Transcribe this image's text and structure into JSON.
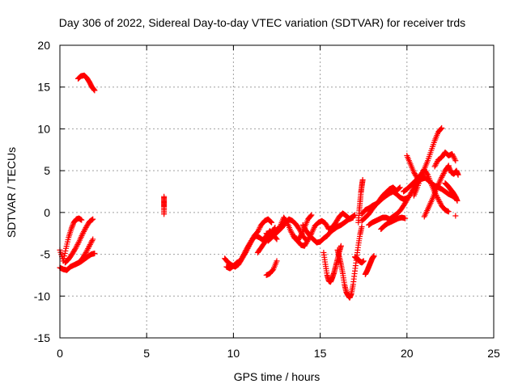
{
  "chart_data": {
    "type": "scatter",
    "title": "Day 306 of 2022, Sidereal Day-to-day VTEC variation (SDTVAR) for receiver trds",
    "xlabel": "GPS time / hours",
    "ylabel": "SDTVAR / TECUs",
    "xlim": [
      0,
      25
    ],
    "ylim": [
      -15,
      20
    ],
    "xticks": [
      0,
      5,
      10,
      15,
      20,
      25
    ],
    "yticks": [
      -15,
      -10,
      -5,
      0,
      5,
      10,
      15,
      20
    ],
    "grid": true,
    "marker": "+",
    "color": "#ff0000",
    "segments": [
      {
        "x": [
          1.05,
          1.2,
          1.4,
          1.55,
          1.7,
          1.85,
          2.0
        ],
        "y": [
          16.0,
          16.3,
          16.4,
          16.1,
          15.6,
          15.0,
          14.6
        ]
      },
      {
        "x": [
          0.0,
          0.2,
          0.4,
          0.6,
          0.8,
          1.0,
          1.2,
          1.4,
          1.6,
          1.8,
          2.0
        ],
        "y": [
          -6.6,
          -6.8,
          -6.9,
          -6.5,
          -6.3,
          -6.1,
          -5.9,
          -5.6,
          -5.3,
          -5.0,
          -4.9
        ]
      },
      {
        "x": [
          0.0,
          0.2,
          0.35,
          0.5,
          0.65,
          0.8,
          0.95,
          1.1,
          1.25
        ],
        "y": [
          -4.5,
          -5.8,
          -4.3,
          -3.0,
          -2.0,
          -1.2,
          -0.8,
          -0.7,
          -0.9
        ]
      },
      {
        "x": [
          0.3,
          0.5,
          0.7,
          0.9,
          1.1,
          1.3,
          1.5,
          1.7,
          1.9
        ],
        "y": [
          -6.0,
          -5.6,
          -5.0,
          -4.3,
          -3.5,
          -2.6,
          -1.8,
          -1.1,
          -0.8
        ]
      },
      {
        "x": [
          0.9,
          1.1,
          1.3,
          1.5,
          1.7,
          1.9
        ],
        "y": [
          -6.2,
          -6.0,
          -5.5,
          -4.8,
          -4.0,
          -3.2
        ]
      },
      {
        "x": [
          6.0,
          6.0,
          6.0,
          6.0
        ],
        "y": [
          1.9,
          1.3,
          0.7,
          -0.2
        ]
      },
      {
        "x": [
          9.5,
          9.7,
          9.9,
          10.1,
          10.3,
          10.5,
          10.7,
          10.9,
          11.1,
          11.3,
          11.5,
          11.7,
          11.9,
          12.1,
          12.3,
          12.5
        ],
        "y": [
          -5.5,
          -6.0,
          -6.3,
          -6.5,
          -6.2,
          -5.5,
          -4.8,
          -4.0,
          -3.2,
          -2.8,
          -3.0,
          -3.3,
          -2.8,
          -2.2,
          -2.7,
          -3.2
        ]
      },
      {
        "x": [
          9.6,
          9.8,
          10.0,
          10.2,
          10.4,
          10.6,
          10.8,
          11.0,
          11.2,
          11.4,
          11.6,
          11.8,
          12.0,
          12.2
        ],
        "y": [
          -6.5,
          -6.7,
          -6.4,
          -6.0,
          -5.8,
          -5.0,
          -4.2,
          -3.5,
          -2.8,
          -2.3,
          -1.5,
          -1.0,
          -0.8,
          -1.2
        ]
      },
      {
        "x": [
          11.4,
          11.6,
          11.8,
          12.0,
          12.2,
          12.4
        ],
        "y": [
          -4.8,
          -4.2,
          -3.6,
          -3.0,
          -2.4,
          -1.8
        ]
      },
      {
        "x": [
          11.9,
          12.1,
          12.3,
          12.5,
          12.7,
          12.9,
          13.1,
          13.3,
          13.5,
          13.7,
          13.9,
          14.1,
          14.3,
          14.5
        ],
        "y": [
          -2.5,
          -2.9,
          -2.6,
          -2.2,
          -1.6,
          -0.6,
          -1.2,
          -2.2,
          -3.0,
          -3.4,
          -2.7,
          -1.8,
          -0.8,
          -0.3
        ]
      },
      {
        "x": [
          12.0,
          12.2,
          12.4,
          12.6,
          12.8,
          13.0,
          13.2,
          13.4,
          13.6,
          13.8,
          14.0,
          14.2
        ],
        "y": [
          -3.4,
          -3.0,
          -2.6,
          -2.2,
          -1.8,
          -1.2,
          -0.8,
          -1.0,
          -1.4,
          -2.0,
          -2.8,
          -3.3
        ]
      },
      {
        "x": [
          11.9,
          12.1,
          12.3,
          12.5
        ],
        "y": [
          -7.5,
          -7.3,
          -6.8,
          -5.8
        ]
      },
      {
        "x": [
          13.5,
          13.7,
          13.9,
          14.1,
          14.3,
          14.5,
          14.7,
          14.9,
          15.1,
          15.3,
          15.5,
          15.7,
          15.9,
          16.1,
          16.3,
          16.5,
          16.7,
          16.9
        ],
        "y": [
          -2.8,
          -3.4,
          -3.9,
          -4.0,
          -3.3,
          -2.5,
          -1.6,
          -1.2,
          -1.0,
          -1.3,
          -2.0,
          -1.8,
          -1.2,
          -0.5,
          -0.1,
          -0.4,
          -0.8,
          -0.6
        ]
      },
      {
        "x": [
          14.0,
          14.2,
          14.4,
          14.6,
          14.8,
          15.0,
          15.2,
          15.4,
          15.6,
          15.8,
          16.0,
          16.2,
          16.4,
          16.6,
          16.8,
          17.0
        ],
        "y": [
          -1.5,
          -2.2,
          -2.8,
          -3.2,
          -3.6,
          -3.5,
          -3.1,
          -2.8,
          -2.3,
          -2.0,
          -1.7,
          -1.5,
          -1.2,
          -0.9,
          -0.6,
          -0.3
        ]
      },
      {
        "x": [
          15.2,
          15.3,
          15.4,
          15.5,
          15.6,
          15.7,
          15.8,
          15.9,
          16.0,
          16.1,
          16.2
        ],
        "y": [
          -4.8,
          -6.2,
          -7.5,
          -8.2,
          -8.3,
          -7.8,
          -7.2,
          -6.4,
          -5.6,
          -4.7,
          -4.0
        ]
      },
      {
        "x": [
          16.0,
          16.1,
          16.2,
          16.3,
          16.4,
          16.5,
          16.6,
          16.7,
          16.8,
          16.9,
          17.0,
          17.1,
          17.2,
          17.3,
          17.4
        ],
        "y": [
          -4.5,
          -5.3,
          -6.2,
          -7.3,
          -8.6,
          -9.5,
          -9.9,
          -10.2,
          -9.7,
          -8.6,
          -7.0,
          -5.4,
          -3.9,
          -2.6,
          -1.7
        ]
      },
      {
        "x": [
          17.0,
          17.1,
          17.2,
          17.3,
          17.4,
          17.5
        ],
        "y": [
          -5.3,
          -5.5,
          -5.6,
          -5.9,
          -6.0,
          -5.8
        ]
      },
      {
        "x": [
          17.6,
          17.7,
          17.8,
          17.9,
          18.0,
          18.1
        ],
        "y": [
          -7.4,
          -7.0,
          -6.5,
          -6.0,
          -5.5,
          -5.2
        ]
      },
      {
        "x": [
          17.2,
          17.25,
          17.3,
          17.35,
          17.4,
          17.45
        ],
        "y": [
          -1.2,
          0.2,
          1.3,
          2.4,
          3.2,
          3.9
        ]
      },
      {
        "x": [
          17.4,
          17.6,
          17.8,
          18.0,
          18.2,
          18.4,
          18.6,
          18.8,
          19.0,
          19.2,
          19.4,
          19.6
        ],
        "y": [
          -1.0,
          -0.6,
          -0.2,
          0.4,
          0.9,
          1.4,
          2.0,
          2.4,
          2.8,
          3.0,
          2.6,
          3.0
        ]
      },
      {
        "x": [
          17.4,
          17.6,
          17.8,
          18.0,
          18.2,
          18.4,
          18.6,
          18.8,
          19.0,
          19.2,
          19.4,
          19.6,
          19.8,
          20.0
        ],
        "y": [
          -0.2,
          0.3,
          0.5,
          0.8,
          1.0,
          1.3,
          1.7,
          2.0,
          2.3,
          2.5,
          2.2,
          1.8,
          1.6,
          1.7
        ]
      },
      {
        "x": [
          17.8,
          18.0,
          18.2,
          18.4,
          18.6,
          18.8,
          19.0,
          19.2,
          19.4,
          19.6,
          19.8,
          20.0,
          20.2,
          20.4,
          20.6,
          20.8,
          21.0
        ],
        "y": [
          -1.5,
          -1.2,
          -1.0,
          -0.8,
          -0.6,
          -0.6,
          -0.8,
          -0.5,
          -0.2,
          0.2,
          0.8,
          1.5,
          2.2,
          2.9,
          3.5,
          4.0,
          4.1
        ]
      },
      {
        "x": [
          18.5,
          18.7,
          18.9,
          19.1,
          19.3,
          19.5,
          19.7,
          19.9
        ],
        "y": [
          -2.0,
          -1.6,
          -1.3,
          -1.1,
          -0.9,
          -0.7,
          -0.6,
          -0.7
        ]
      },
      {
        "x": [
          19.8,
          20.0,
          20.2,
          20.4,
          20.6,
          20.8,
          21.0,
          21.2,
          21.4,
          21.6,
          21.8,
          22.0,
          22.2,
          22.4,
          22.6,
          22.8
        ],
        "y": [
          2.5,
          2.8,
          3.2,
          3.6,
          4.0,
          4.4,
          4.2,
          3.9,
          3.5,
          3.2,
          3.0,
          2.8,
          2.5,
          2.2,
          2.0,
          1.7
        ]
      },
      {
        "x": [
          20.0,
          20.2,
          20.4,
          20.6,
          20.8,
          21.0,
          21.2,
          21.4,
          21.6,
          21.8,
          22.0
        ],
        "y": [
          6.8,
          5.8,
          4.8,
          4.1,
          4.5,
          5.2,
          6.2,
          7.4,
          8.6,
          9.6,
          10.1
        ]
      },
      {
        "x": [
          20.4,
          20.6,
          20.8,
          21.0,
          21.2,
          21.4,
          21.6,
          21.8,
          22.0,
          22.2,
          22.4
        ],
        "y": [
          2.0,
          3.0,
          4.2,
          5.1,
          4.5,
          3.4,
          2.4,
          1.6,
          0.8,
          0.3,
          0.1
        ]
      },
      {
        "x": [
          21.0,
          21.2,
          21.4,
          21.6,
          21.8,
          22.0,
          22.2,
          22.4
        ],
        "y": [
          -0.5,
          0.4,
          1.3,
          2.3,
          3.3,
          4.2,
          5.0,
          5.6
        ]
      },
      {
        "x": [
          21.6,
          21.8,
          22.0,
          22.2,
          22.4,
          22.6,
          22.8
        ],
        "y": [
          5.5,
          6.3,
          6.6,
          7.2,
          6.8,
          7.0,
          6.2
        ]
      },
      {
        "x": [
          22.2,
          22.35,
          22.5,
          22.65,
          22.8,
          22.9
        ],
        "y": [
          3.5,
          3.2,
          2.8,
          2.4,
          1.9,
          1.4
        ]
      },
      {
        "x": [
          22.4,
          22.55,
          22.7,
          22.85,
          22.95
        ],
        "y": [
          5.5,
          4.8,
          4.6,
          5.0,
          4.5
        ]
      },
      {
        "x": [
          22.8
        ],
        "y": [
          -0.4
        ]
      }
    ]
  }
}
